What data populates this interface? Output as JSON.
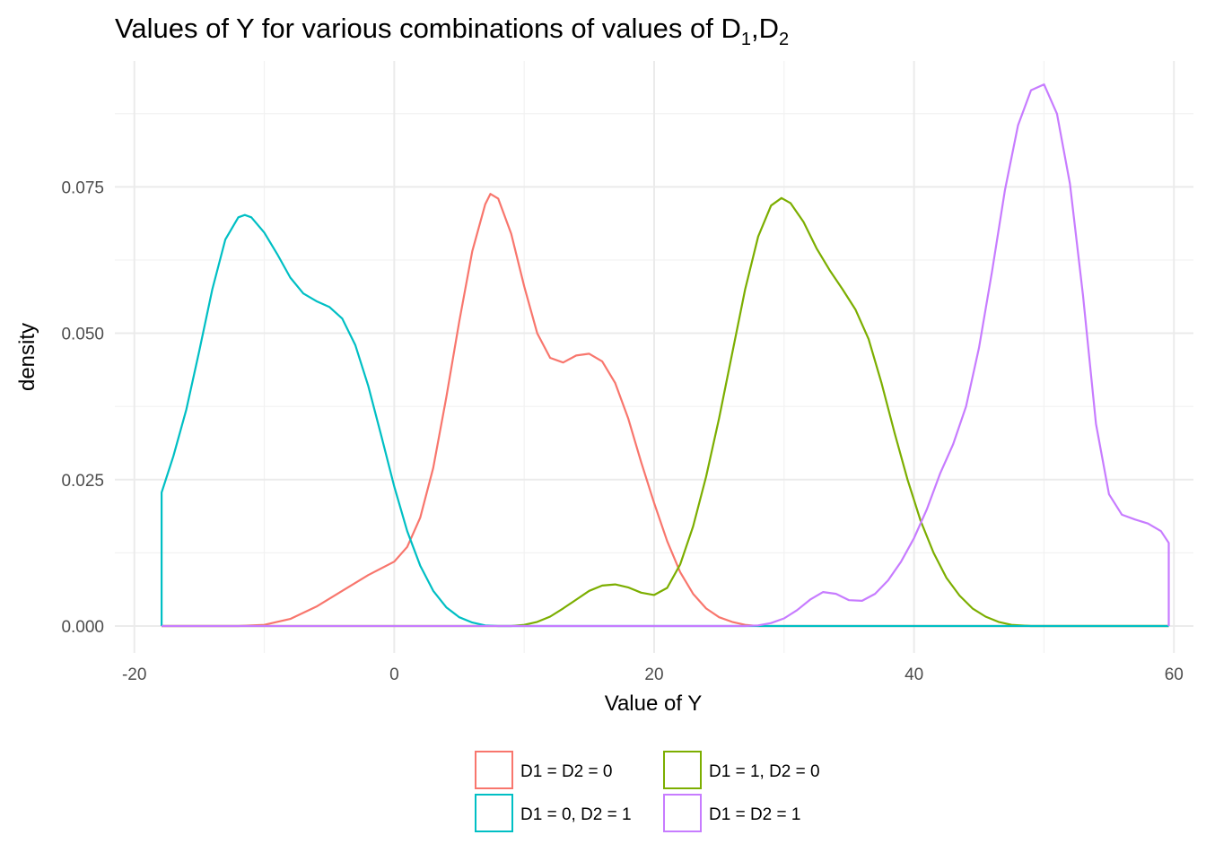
{
  "chart_data": {
    "type": "line",
    "title": {
      "main": "Values of Y for various combinations of values of D",
      "sub1": "1",
      "sep": ",D",
      "sub2": "2"
    },
    "xlabel": "Value of Y",
    "ylabel": "density",
    "xlim": [
      -21.5,
      61.5
    ],
    "ylim": [
      -0.0046,
      0.0965
    ],
    "x_ticks": [
      -20,
      0,
      20,
      40,
      60
    ],
    "x_tick_labels": [
      "-20",
      "0",
      "20",
      "40",
      "60"
    ],
    "y_ticks": [
      0,
      0.025,
      0.05,
      0.075
    ],
    "y_tick_labels": [
      "0.000",
      "0.025",
      "0.050",
      "0.075"
    ],
    "grid": true,
    "legend_position": "bottom",
    "series": [
      {
        "name": "D1 = D2 = 0",
        "color": "#F8766D",
        "points": [
          [
            -17.9,
            0
          ],
          [
            -12,
            0
          ],
          [
            -10,
            0.0002
          ],
          [
            -8,
            0.0012
          ],
          [
            -6,
            0.0033
          ],
          [
            -4,
            0.006
          ],
          [
            -2,
            0.0087
          ],
          [
            0,
            0.011
          ],
          [
            1,
            0.0135
          ],
          [
            2,
            0.0185
          ],
          [
            3,
            0.027
          ],
          [
            4,
            0.039
          ],
          [
            5,
            0.052
          ],
          [
            6,
            0.064
          ],
          [
            7,
            0.072
          ],
          [
            7.4,
            0.0738
          ],
          [
            8,
            0.073
          ],
          [
            9,
            0.067
          ],
          [
            10,
            0.058
          ],
          [
            11,
            0.05
          ],
          [
            12,
            0.0458
          ],
          [
            13,
            0.045
          ],
          [
            14,
            0.0462
          ],
          [
            15,
            0.0465
          ],
          [
            16,
            0.0452
          ],
          [
            17,
            0.0415
          ],
          [
            18,
            0.0355
          ],
          [
            19,
            0.028
          ],
          [
            20,
            0.021
          ],
          [
            21,
            0.0145
          ],
          [
            22,
            0.0092
          ],
          [
            23,
            0.0055
          ],
          [
            24,
            0.003
          ],
          [
            25,
            0.0015
          ],
          [
            26,
            0.0007
          ],
          [
            27,
            0.0002
          ],
          [
            28,
            0
          ],
          [
            59.6,
            0
          ]
        ]
      },
      {
        "name": "D1 = 1, D2 = 0",
        "color": "#7CAE00",
        "points": [
          [
            -17.9,
            0
          ],
          [
            9,
            0
          ],
          [
            10,
            0.0002
          ],
          [
            11,
            0.0007
          ],
          [
            12,
            0.0016
          ],
          [
            13,
            0.003
          ],
          [
            14,
            0.0045
          ],
          [
            15,
            0.006
          ],
          [
            16,
            0.0069
          ],
          [
            17,
            0.0071
          ],
          [
            18,
            0.0066
          ],
          [
            19,
            0.0057
          ],
          [
            20,
            0.0053
          ],
          [
            21,
            0.0065
          ],
          [
            22,
            0.0105
          ],
          [
            23,
            0.017
          ],
          [
            24,
            0.0255
          ],
          [
            25,
            0.0355
          ],
          [
            26,
            0.0465
          ],
          [
            27,
            0.0575
          ],
          [
            28,
            0.0665
          ],
          [
            29,
            0.0718
          ],
          [
            29.8,
            0.0731
          ],
          [
            30.5,
            0.0722
          ],
          [
            31.5,
            0.069
          ],
          [
            32.5,
            0.0645
          ],
          [
            33.5,
            0.0608
          ],
          [
            34.5,
            0.0575
          ],
          [
            35.5,
            0.054
          ],
          [
            36.5,
            0.049
          ],
          [
            37.5,
            0.0415
          ],
          [
            38.5,
            0.033
          ],
          [
            39.5,
            0.025
          ],
          [
            40.5,
            0.018
          ],
          [
            41.5,
            0.0125
          ],
          [
            42.5,
            0.0082
          ],
          [
            43.5,
            0.0052
          ],
          [
            44.5,
            0.003
          ],
          [
            45.5,
            0.0016
          ],
          [
            46.5,
            0.0007
          ],
          [
            47.5,
            0.0002
          ],
          [
            49,
            0
          ],
          [
            59.6,
            0
          ]
        ]
      },
      {
        "name": "D1 = 0, D2 = 1",
        "color": "#00BFC4",
        "points": [
          [
            -17.9,
            0
          ],
          [
            -17.9,
            0.0228
          ],
          [
            -17,
            0.029
          ],
          [
            -16,
            0.037
          ],
          [
            -15,
            0.047
          ],
          [
            -14,
            0.0575
          ],
          [
            -13,
            0.066
          ],
          [
            -12,
            0.0698
          ],
          [
            -11.5,
            0.0702
          ],
          [
            -11,
            0.0698
          ],
          [
            -10,
            0.0672
          ],
          [
            -9,
            0.0635
          ],
          [
            -8,
            0.0595
          ],
          [
            -7,
            0.0568
          ],
          [
            -6,
            0.0555
          ],
          [
            -5,
            0.0545
          ],
          [
            -4,
            0.0525
          ],
          [
            -3,
            0.048
          ],
          [
            -2,
            0.041
          ],
          [
            -1,
            0.0325
          ],
          [
            0,
            0.0238
          ],
          [
            1,
            0.0162
          ],
          [
            2,
            0.0103
          ],
          [
            3,
            0.006
          ],
          [
            4,
            0.0032
          ],
          [
            5,
            0.0015
          ],
          [
            6,
            0.0006
          ],
          [
            7,
            0.0001
          ],
          [
            8,
            0
          ],
          [
            59.6,
            0
          ]
        ]
      },
      {
        "name": "D1 = D2 = 1",
        "color": "#C77CFF",
        "points": [
          [
            -17.9,
            0
          ],
          [
            27,
            0
          ],
          [
            28,
            0.0001
          ],
          [
            29,
            0.0005
          ],
          [
            30,
            0.0013
          ],
          [
            31,
            0.0027
          ],
          [
            32,
            0.0045
          ],
          [
            33,
            0.0058
          ],
          [
            34,
            0.0055
          ],
          [
            35,
            0.0044
          ],
          [
            36,
            0.0043
          ],
          [
            37,
            0.0055
          ],
          [
            38,
            0.0078
          ],
          [
            39,
            0.011
          ],
          [
            40,
            0.015
          ],
          [
            41,
            0.02
          ],
          [
            42,
            0.026
          ],
          [
            43,
            0.031
          ],
          [
            44,
            0.0375
          ],
          [
            45,
            0.0475
          ],
          [
            46,
            0.0605
          ],
          [
            47,
            0.0745
          ],
          [
            48,
            0.0855
          ],
          [
            49,
            0.0915
          ],
          [
            50,
            0.0925
          ],
          [
            51,
            0.0875
          ],
          [
            52,
            0.0755
          ],
          [
            53,
            0.0565
          ],
          [
            54,
            0.0345
          ],
          [
            55,
            0.0225
          ],
          [
            56,
            0.019
          ],
          [
            57,
            0.0182
          ],
          [
            58,
            0.0175
          ],
          [
            59,
            0.0162
          ],
          [
            59.6,
            0.0142
          ],
          [
            59.6,
            0
          ]
        ]
      }
    ]
  }
}
